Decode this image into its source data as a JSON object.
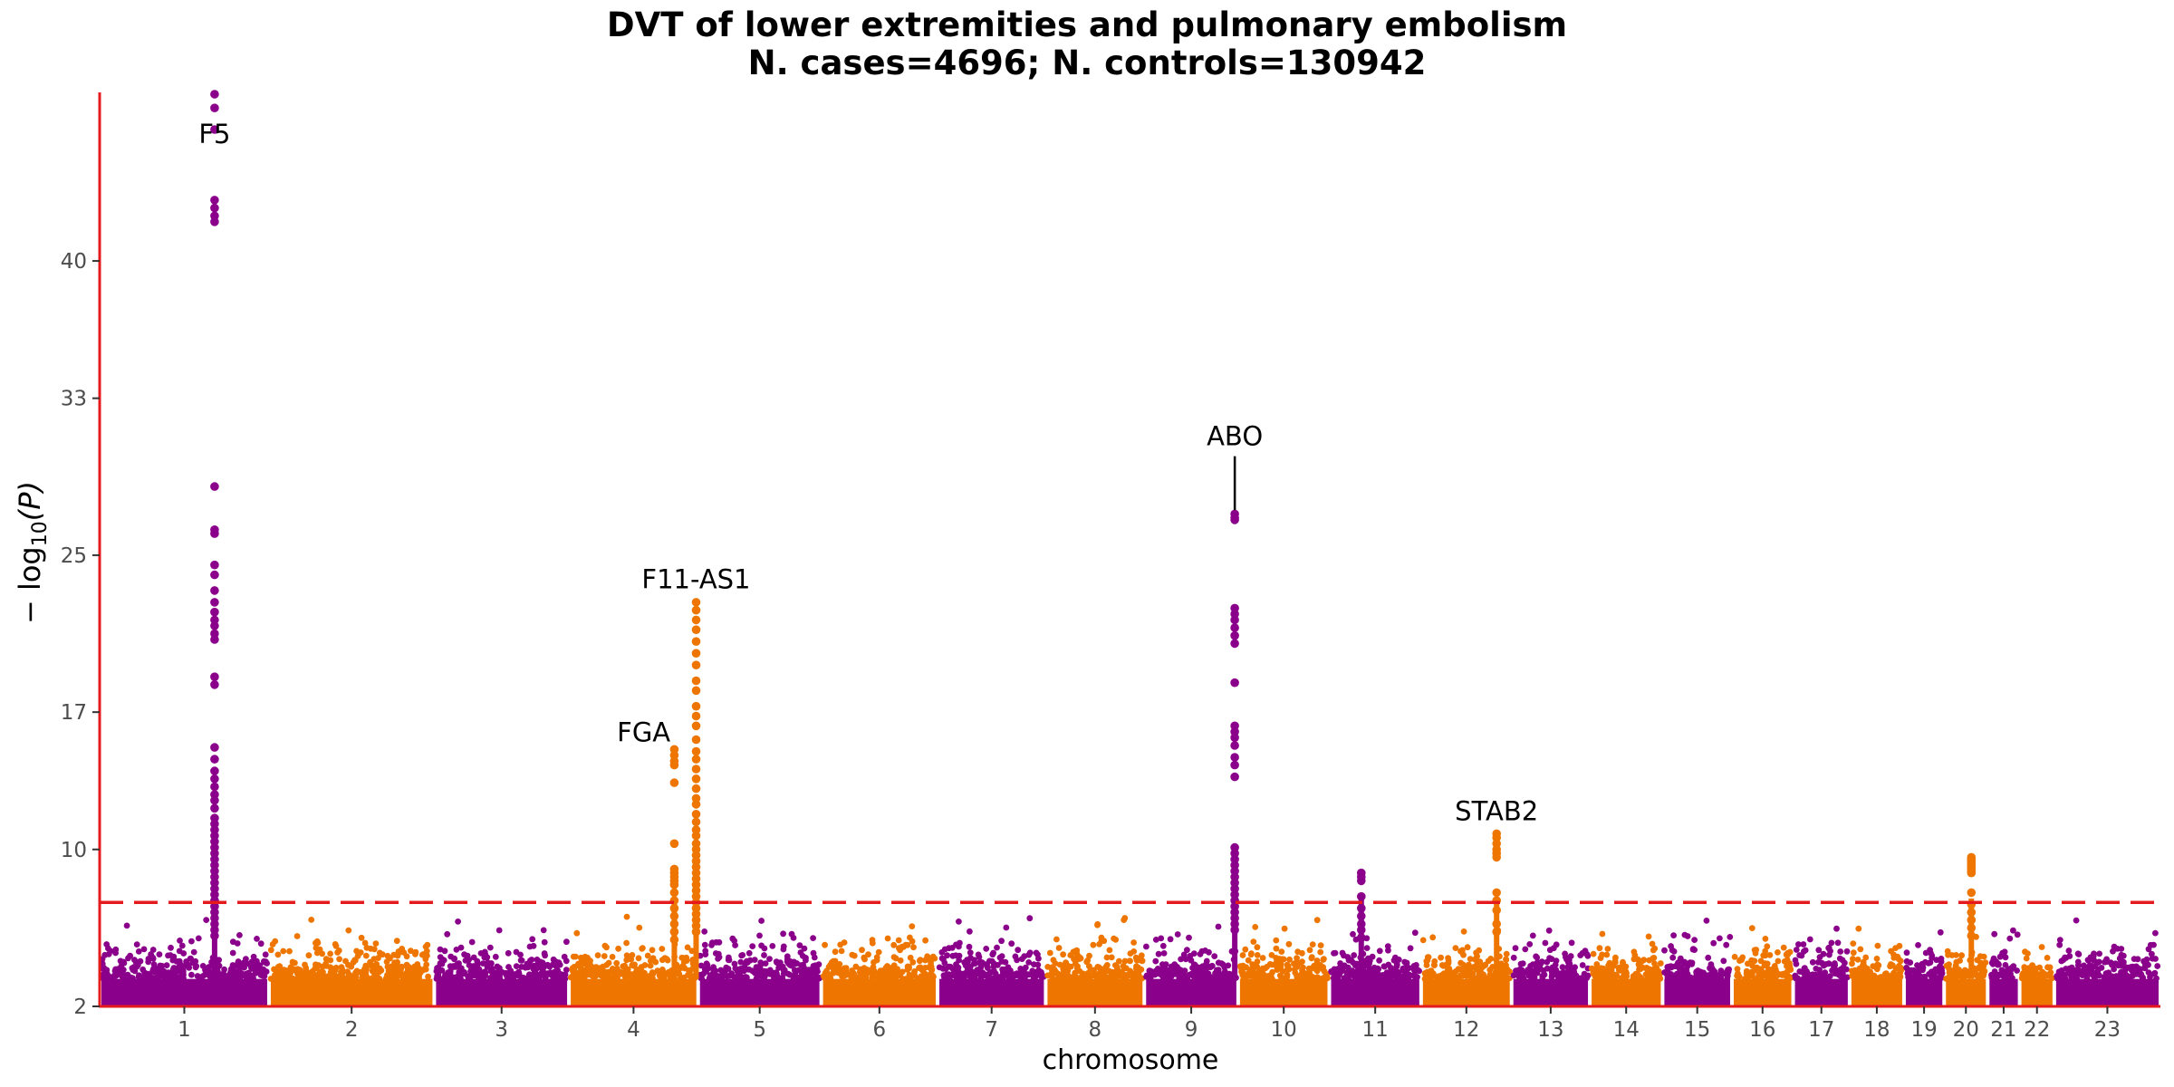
{
  "chart_data": {
    "type": "scatter",
    "title": "DVT of lower extremities and pulmonary embolism",
    "subtitle": "N. cases=4696; N. controls=130942",
    "xlabel": "chromosome",
    "ylabel_main": "− log",
    "ylabel_sub": "10",
    "ylabel_tail": "(P)",
    "y_ticks": [
      "2",
      "10",
      "17",
      "25",
      "33",
      "40"
    ],
    "significance_line": 7.3,
    "series_colors": [
      "#8b008b",
      "#ee7600"
    ],
    "axis_color": "#e41a1c",
    "chromosomes": [
      {
        "label": "1",
        "start": 0,
        "end": 249
      },
      {
        "label": "2",
        "start": 249,
        "end": 492
      },
      {
        "label": "3",
        "start": 492,
        "end": 690
      },
      {
        "label": "4",
        "start": 690,
        "end": 880
      },
      {
        "label": "5",
        "start": 880,
        "end": 1061
      },
      {
        "label": "6",
        "start": 1061,
        "end": 1232
      },
      {
        "label": "7",
        "start": 1232,
        "end": 1391
      },
      {
        "label": "8",
        "start": 1391,
        "end": 1536
      },
      {
        "label": "9",
        "start": 1536,
        "end": 1674
      },
      {
        "label": "10",
        "start": 1674,
        "end": 1808
      },
      {
        "label": "11",
        "start": 1808,
        "end": 1943
      },
      {
        "label": "12",
        "start": 1943,
        "end": 2076
      },
      {
        "label": "13",
        "start": 2076,
        "end": 2191
      },
      {
        "label": "14",
        "start": 2191,
        "end": 2298
      },
      {
        "label": "15",
        "start": 2298,
        "end": 2400
      },
      {
        "label": "16",
        "start": 2400,
        "end": 2490
      },
      {
        "label": "17",
        "start": 2490,
        "end": 2573
      },
      {
        "label": "18",
        "start": 2573,
        "end": 2653
      },
      {
        "label": "19",
        "start": 2653,
        "end": 2712
      },
      {
        "label": "20",
        "start": 2712,
        "end": 2776
      },
      {
        "label": "21",
        "start": 2776,
        "end": 2823
      },
      {
        "label": "22",
        "start": 2823,
        "end": 2874
      },
      {
        "label": "23",
        "start": 2874,
        "end": 3030
      }
    ],
    "peaks": [
      {
        "chrom": "1",
        "pos": 169,
        "points": [
          48.5,
          47.8,
          46.7,
          43.1,
          42.7,
          42.3,
          42.0,
          28.5,
          26.3,
          26.1,
          24.5,
          24.0,
          23.2,
          22.6,
          22.1,
          21.7,
          21.4,
          21.0,
          20.7,
          18.8,
          18.4,
          15.2,
          14.6,
          14.0,
          13.6,
          13.2,
          12.8,
          12.5,
          12.1,
          11.6,
          11.3,
          11.0,
          10.7,
          10.4,
          10.1,
          9.8,
          9.5,
          9.2,
          8.9,
          8.6,
          8.3,
          8.0,
          7.7,
          7.4,
          7.1,
          6.8,
          6.5,
          6.2,
          5.9,
          5.6
        ]
      },
      {
        "chrom": "4",
        "pos": 845,
        "points": [
          15.1,
          14.8,
          14.5,
          14.3,
          13.4,
          10.3,
          9.0,
          8.8,
          8.6,
          8.4,
          8.2,
          7.8,
          7.4,
          7.0,
          6.6,
          6.2,
          5.8,
          5.4
        ]
      },
      {
        "chrom": "4",
        "pos": 877,
        "points": [
          22.6,
          22.2,
          21.7,
          21.2,
          20.6,
          20.0,
          19.4,
          18.6,
          18.1,
          17.3,
          16.8,
          16.3,
          15.6,
          15.0,
          14.6,
          14.1,
          13.6,
          13.1,
          12.6,
          12.3,
          11.8,
          11.4,
          11.0,
          10.7,
          10.3,
          10.0,
          9.7,
          9.4,
          9.1,
          8.8,
          8.5,
          8.2,
          7.9,
          7.6,
          7.3,
          7.0,
          6.7,
          6.4,
          6.1,
          5.8
        ]
      },
      {
        "chrom": "9",
        "pos": 1669,
        "points": [
          27.1,
          26.9,
          26.8,
          22.3,
          22.0,
          21.7,
          21.3,
          20.9,
          20.5,
          18.5,
          16.3,
          16.0,
          15.7,
          15.3,
          14.7,
          14.3,
          13.7,
          10.1,
          9.8,
          9.5,
          9.2,
          8.9,
          8.6,
          8.3,
          8.0,
          7.7,
          7.4,
          7.1,
          6.8,
          6.5,
          6.2,
          5.9
        ]
      },
      {
        "chrom": "11",
        "pos": 1855,
        "points": [
          8.8,
          8.6,
          8.4,
          7.6,
          7.0,
          6.6,
          6.2,
          5.9,
          5.5
        ]
      },
      {
        "chrom": "12",
        "pos": 2054,
        "points": [
          10.8,
          10.6,
          10.3,
          10.0,
          9.8,
          9.6,
          7.8,
          7.4,
          6.9,
          6.2,
          5.8
        ]
      },
      {
        "chrom": "20",
        "pos": 2752,
        "points": [
          9.6,
          9.5,
          9.4,
          9.3,
          9.2,
          9.1,
          9.0,
          8.9,
          8.8,
          7.8,
          7.2,
          6.8,
          6.4,
          6.0,
          5.6
        ]
      }
    ],
    "annotations": [
      {
        "text": "F5",
        "chrom_pos": 169,
        "y": 46.0,
        "line_to": null
      },
      {
        "text": "F11-AS1",
        "chrom_pos": 877,
        "y": 23.3,
        "line_to": null
      },
      {
        "text": "FGA",
        "chrom_pos": 800,
        "y": 15.5,
        "line_to": null
      },
      {
        "text": "ABO",
        "chrom_pos": 1669,
        "y": 30.6,
        "line_to": 27.3
      },
      {
        "text": "STAB2",
        "chrom_pos": 2054,
        "y": 11.5,
        "line_to": null
      }
    ]
  }
}
